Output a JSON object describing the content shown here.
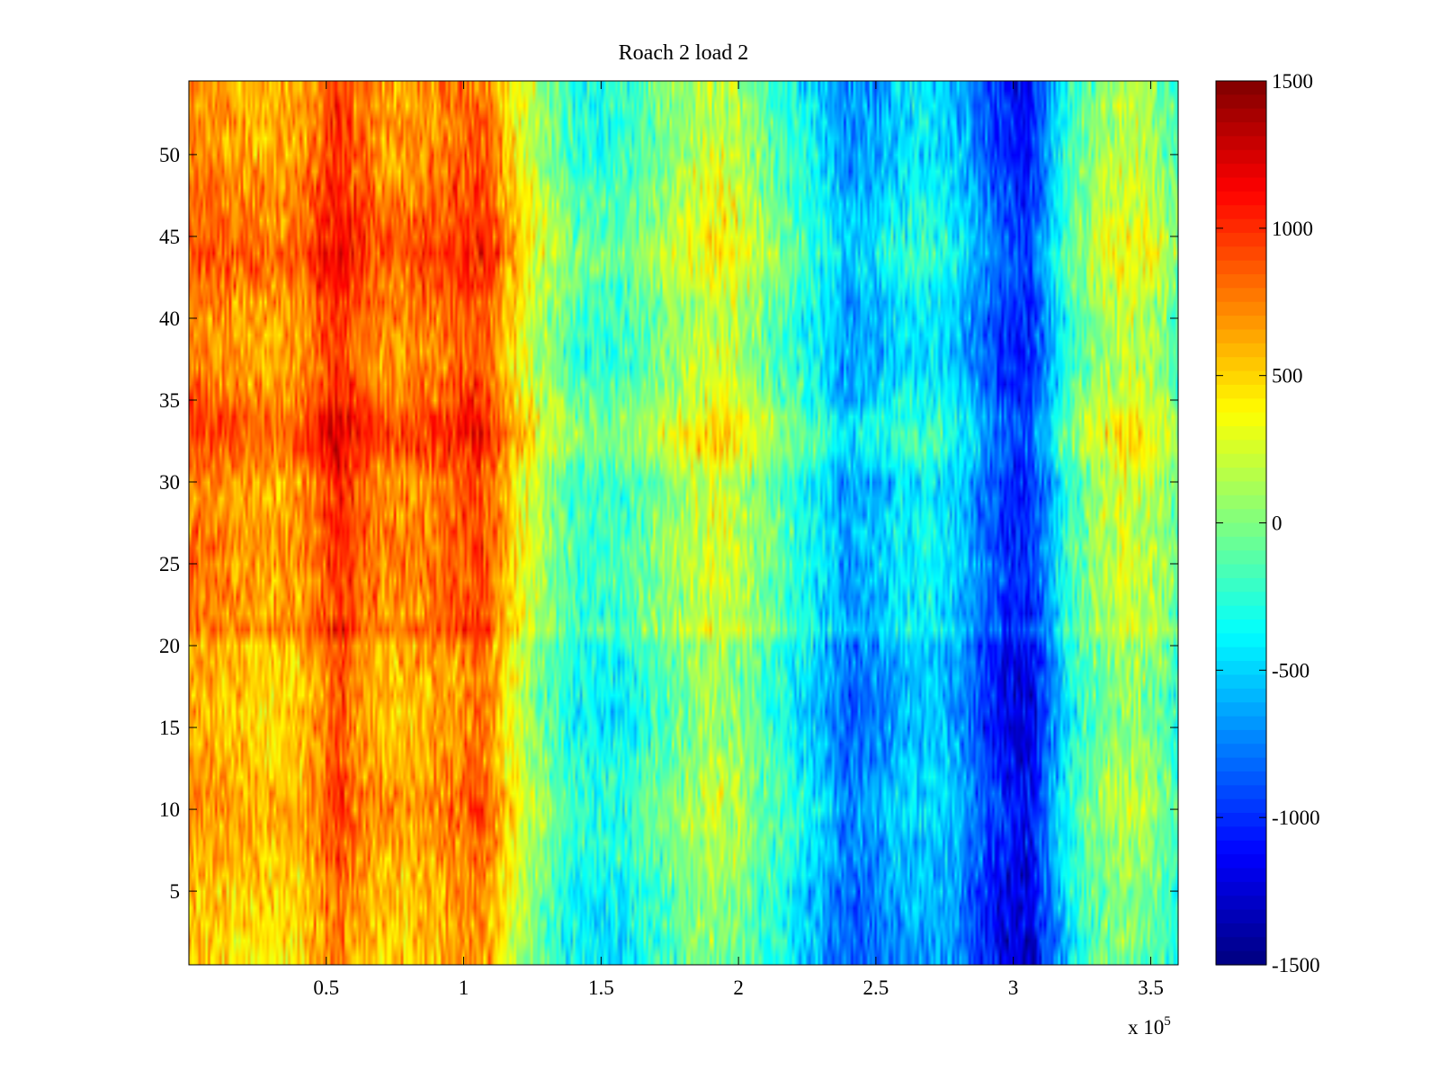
{
  "chart_data": {
    "type": "heatmap",
    "title": "Roach 2 load 2",
    "xlabel": "",
    "ylabel": "",
    "x_exponent_label": "x 10",
    "x_exponent_power": "5",
    "xlim": [
      0,
      3.6
    ],
    "ylim": [
      0.5,
      54.5
    ],
    "x_ticks": [
      0.5,
      1,
      1.5,
      2,
      2.5,
      3,
      3.5
    ],
    "x_tick_labels": [
      "0.5",
      "1",
      "1.5",
      "2",
      "2.5",
      "3",
      "3.5"
    ],
    "y_ticks": [
      5,
      10,
      15,
      20,
      25,
      30,
      35,
      40,
      45,
      50
    ],
    "y_tick_labels": [
      "5",
      "10",
      "15",
      "20",
      "25",
      "30",
      "35",
      "40",
      "45",
      "50"
    ],
    "colormap": "jet",
    "colorbar": {
      "clim": [
        -1500,
        1500
      ],
      "ticks": [
        1500,
        1000,
        500,
        0,
        -500,
        -1000,
        -1500
      ],
      "tick_labels": [
        "1500",
        "1000",
        "500",
        "0",
        "-500",
        "-1000",
        "-1500"
      ]
    },
    "x_profile": {
      "x": [
        0.0,
        0.1,
        0.2,
        0.3,
        0.4,
        0.5,
        0.55,
        0.6,
        0.7,
        0.8,
        0.9,
        1.0,
        1.05,
        1.1,
        1.15,
        1.2,
        1.3,
        1.4,
        1.5,
        1.6,
        1.7,
        1.8,
        1.9,
        2.0,
        2.1,
        2.2,
        2.3,
        2.4,
        2.5,
        2.6,
        2.7,
        2.8,
        2.9,
        3.0,
        3.05,
        3.1,
        3.2,
        3.3,
        3.4,
        3.5,
        3.6
      ],
      "value": [
        700,
        650,
        600,
        550,
        600,
        850,
        950,
        800,
        650,
        650,
        700,
        800,
        850,
        750,
        500,
        300,
        0,
        -250,
        -300,
        -250,
        -100,
        50,
        200,
        100,
        -100,
        -300,
        -500,
        -750,
        -650,
        -500,
        -450,
        -600,
        -900,
        -1100,
        -1150,
        -900,
        -300,
        0,
        150,
        100,
        -200
      ]
    },
    "y_row_offsets": {
      "y": [
        1,
        5,
        10,
        15,
        20,
        21,
        22,
        25,
        27,
        30,
        32,
        33,
        34,
        35,
        37,
        40,
        44,
        45,
        50,
        54
      ],
      "value": [
        -150,
        -100,
        50,
        -100,
        -50,
        150,
        50,
        100,
        100,
        50,
        250,
        300,
        250,
        150,
        50,
        50,
        250,
        200,
        50,
        0
      ]
    },
    "noise_amplitude": 220
  }
}
